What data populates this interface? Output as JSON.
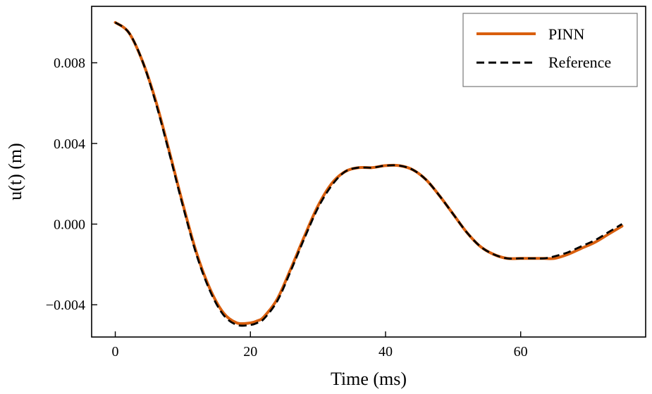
{
  "chart_data": {
    "type": "line",
    "xlabel": "Time (ms)",
    "ylabel": "u(t) (m)",
    "xlim": [
      -3.5,
      78.5
    ],
    "ylim": [
      -0.0056,
      0.0108
    ],
    "xticks": [
      0,
      20,
      40,
      60
    ],
    "xtick_labels": [
      "0",
      "20",
      "40",
      "60"
    ],
    "yticks": [
      -0.004,
      0.0,
      0.004,
      0.008
    ],
    "ytick_labels": [
      "−0.004",
      "0.000",
      "0.004",
      "0.008"
    ],
    "grid": false,
    "legend_position": "top-right",
    "series": [
      {
        "name": "PINN",
        "color": "#d95f0e",
        "style": "solid",
        "x": [
          0,
          2,
          4,
          6,
          8,
          10,
          12,
          14,
          16,
          18,
          20,
          21,
          22,
          24,
          26,
          28,
          30,
          32,
          34,
          36,
          38,
          40,
          42,
          44,
          46,
          48,
          50,
          52,
          54,
          56,
          58,
          60,
          62,
          63.5,
          65,
          67,
          69,
          71,
          73,
          75
        ],
        "y": [
          0.01,
          0.0095,
          0.0081,
          0.0061,
          0.0036,
          0.001,
          -0.0014,
          -0.0032,
          -0.0044,
          -0.0049,
          -0.0049,
          -0.0048,
          -0.0046,
          -0.0037,
          -0.0022,
          -0.0006,
          0.0009,
          0.002,
          0.0026,
          0.0028,
          0.0028,
          0.0029,
          0.0029,
          0.0027,
          0.0022,
          0.0014,
          0.0005,
          -0.0004,
          -0.0011,
          -0.0015,
          -0.0017,
          -0.0017,
          -0.0017,
          -0.0017,
          -0.0017,
          -0.0015,
          -0.0012,
          -0.0009,
          -0.0005,
          -0.0001
        ]
      },
      {
        "name": "Reference",
        "color": "#000000",
        "style": "dashed",
        "x": [
          0,
          2,
          4,
          6,
          8,
          10,
          12,
          14,
          16,
          18,
          20,
          21,
          22,
          24,
          26,
          28,
          30,
          32,
          34,
          36,
          38,
          40,
          42,
          44,
          46,
          48,
          50,
          52,
          54,
          56,
          58,
          60,
          62,
          63.5,
          65,
          67,
          69,
          71,
          73,
          75
        ],
        "y": [
          0.01,
          0.0095,
          0.0081,
          0.006,
          0.0035,
          0.0009,
          -0.0015,
          -0.0033,
          -0.0045,
          -0.005,
          -0.005,
          -0.0049,
          -0.0047,
          -0.0038,
          -0.0023,
          -0.0007,
          0.0008,
          0.0019,
          0.0026,
          0.0028,
          0.0028,
          0.0029,
          0.0029,
          0.0027,
          0.0022,
          0.0014,
          0.0005,
          -0.0004,
          -0.0011,
          -0.0015,
          -0.0017,
          -0.0017,
          -0.0017,
          -0.0017,
          -0.0016,
          -0.0014,
          -0.0011,
          -0.0008,
          -0.0004,
          0.0
        ]
      }
    ]
  }
}
